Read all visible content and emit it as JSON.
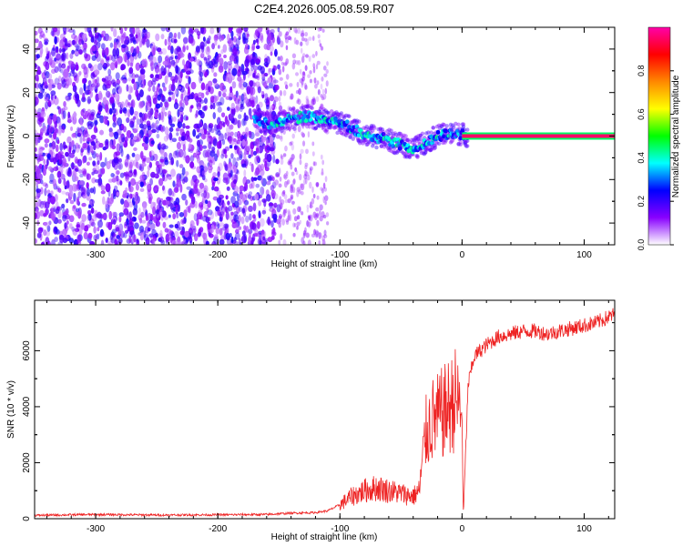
{
  "title": "C2E4.2026.005.08.59.R07",
  "chart_data": [
    {
      "type": "heatmap",
      "xlabel": "Height of straight line (km)",
      "ylabel": "Frequency (Hz)",
      "xlim": [
        -350,
        125
      ],
      "ylim": [
        -50,
        50
      ],
      "xticks": [
        -300,
        -200,
        -100,
        0,
        100
      ],
      "yticks": [
        -40,
        -20,
        0,
        20,
        40
      ],
      "colorbar": {
        "label": "Normalized spectral amplitude",
        "range": [
          0,
          1
        ],
        "ticks": [
          "0.0",
          "0.2",
          "0.4",
          "0.6",
          "0.8"
        ],
        "stops": [
          "#ffffff",
          "#8800ff",
          "#0000ff",
          "#00ffff",
          "#00ff00",
          "#ffff00",
          "#ff8800",
          "#ff0000",
          "#ff00aa"
        ]
      },
      "noise_region": {
        "x_range": [
          -350,
          -150
        ],
        "freq_range": [
          -50,
          50
        ],
        "amplitude": 0.1
      },
      "ridge": [
        {
          "x": -170,
          "f": 7
        },
        {
          "x": -155,
          "f": 5
        },
        {
          "x": -140,
          "f": 8
        },
        {
          "x": -125,
          "f": 9
        },
        {
          "x": -110,
          "f": 7
        },
        {
          "x": -95,
          "f": 5
        },
        {
          "x": -85,
          "f": 2
        },
        {
          "x": -75,
          "f": 0
        },
        {
          "x": -65,
          "f": -1
        },
        {
          "x": -55,
          "f": -3
        },
        {
          "x": -45,
          "f": -5
        },
        {
          "x": -40,
          "f": -6
        },
        {
          "x": -30,
          "f": -3
        },
        {
          "x": -20,
          "f": 0
        },
        {
          "x": -10,
          "f": 1
        },
        {
          "x": 0,
          "f": 1
        },
        {
          "x": 5,
          "f": 0
        }
      ],
      "carrier_line": {
        "x_start": 0,
        "x_end": 125,
        "f": 0,
        "amplitude": 0.95
      }
    },
    {
      "type": "line",
      "xlabel": "Height of straight line (km)",
      "ylabel": "SNR (10 * v/v)",
      "xlim": [
        -350,
        125
      ],
      "ylim": [
        0,
        7800
      ],
      "xticks": [
        -300,
        -200,
        -100,
        0,
        100
      ],
      "yticks": [
        0,
        2000,
        4000,
        6000
      ],
      "series": [
        {
          "name": "SNR",
          "color": "#ee2222",
          "x": [
            -350,
            -300,
            -250,
            -200,
            -160,
            -140,
            -120,
            -110,
            -100,
            -90,
            -80,
            -70,
            -60,
            -50,
            -40,
            -35,
            -30,
            -25,
            -20,
            -15,
            -10,
            -5,
            0,
            1,
            5,
            10,
            20,
            30,
            40,
            50,
            60,
            70,
            80,
            90,
            100,
            110,
            120,
            125
          ],
          "y": [
            120,
            150,
            130,
            140,
            150,
            200,
            220,
            280,
            500,
            800,
            1000,
            1100,
            1000,
            900,
            800,
            1000,
            3000,
            3500,
            3600,
            3800,
            4000,
            4300,
            3700,
            0,
            4800,
            5800,
            6200,
            6500,
            6600,
            6700,
            6700,
            6600,
            6700,
            6800,
            6900,
            7000,
            7200,
            7300
          ]
        }
      ]
    }
  ]
}
